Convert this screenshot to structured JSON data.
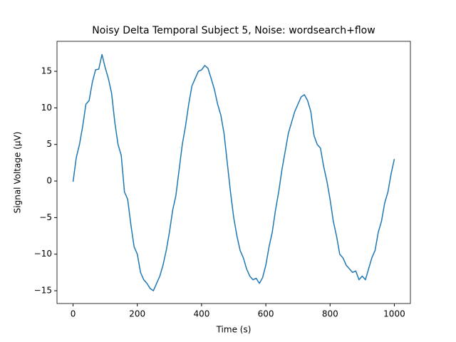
{
  "chart_data": {
    "type": "line",
    "title": "Noisy Delta Temporal Subject 5, Noise: wordsearch+flow",
    "x_label": "Time (s)",
    "y_label": "Signal Voltage (μV)",
    "color": "#1f77b4",
    "x": [
      0,
      10,
      20,
      30,
      40,
      50,
      60,
      70,
      80,
      90,
      100,
      110,
      120,
      130,
      140,
      150,
      160,
      170,
      180,
      190,
      200,
      210,
      220,
      230,
      240,
      250,
      260,
      270,
      280,
      290,
      300,
      310,
      320,
      330,
      340,
      350,
      360,
      370,
      380,
      390,
      400,
      410,
      420,
      430,
      440,
      450,
      460,
      470,
      480,
      490,
      500,
      510,
      520,
      530,
      540,
      550,
      560,
      570,
      580,
      590,
      600,
      610,
      620,
      630,
      640,
      650,
      660,
      670,
      680,
      690,
      700,
      710,
      720,
      730,
      740,
      750,
      760,
      770,
      780,
      790,
      800,
      810,
      820,
      830,
      840,
      850,
      860,
      870,
      880,
      890,
      900,
      910,
      920,
      930,
      940,
      950,
      960,
      970,
      980,
      990,
      1000
    ],
    "values": [
      -0.1,
      3.2,
      5,
      7.5,
      10.5,
      11,
      13.5,
      15.2,
      15.3,
      17.3,
      15.5,
      14,
      12,
      8,
      5,
      3.5,
      -1.5,
      -2.5,
      -6,
      -9,
      -10,
      -12.5,
      -13.5,
      -14,
      -14.7,
      -15,
      -14,
      -13,
      -11.5,
      -9.5,
      -7,
      -4,
      -2,
      1.5,
      5,
      7.5,
      10.5,
      13,
      14,
      15,
      15.2,
      15.8,
      15.4,
      14,
      12.5,
      10.5,
      9,
      6.5,
      2.5,
      -1.5,
      -5,
      -7.5,
      -9.5,
      -10.5,
      -12,
      -13,
      -13.5,
      -13.3,
      -14,
      -13.2,
      -11.5,
      -9,
      -7,
      -4,
      -1.5,
      1.5,
      4,
      6.5,
      8,
      9.5,
      10.5,
      11.5,
      11.8,
      11,
      9.5,
      6.2,
      5,
      4.5,
      2,
      0,
      -2.5,
      -5.5,
      -7.5,
      -10,
      -10.5,
      -11.5,
      -12,
      -12.5,
      -12.3,
      -13.5,
      -13,
      -13.5,
      -12,
      -10.5,
      -9.5,
      -7,
      -5.5,
      -3,
      -1.5,
      1,
      3
    ],
    "xlim": [
      -50,
      1050
    ],
    "ylim": [
      -16.75,
      19.1
    ],
    "xticks": [
      0,
      200,
      400,
      600,
      800,
      1000
    ],
    "yticks": [
      {
        "value": -15,
        "label": "−15"
      },
      {
        "value": -10,
        "label": "−10"
      },
      {
        "value": -5,
        "label": "−5"
      },
      0,
      5,
      10,
      15
    ]
  }
}
